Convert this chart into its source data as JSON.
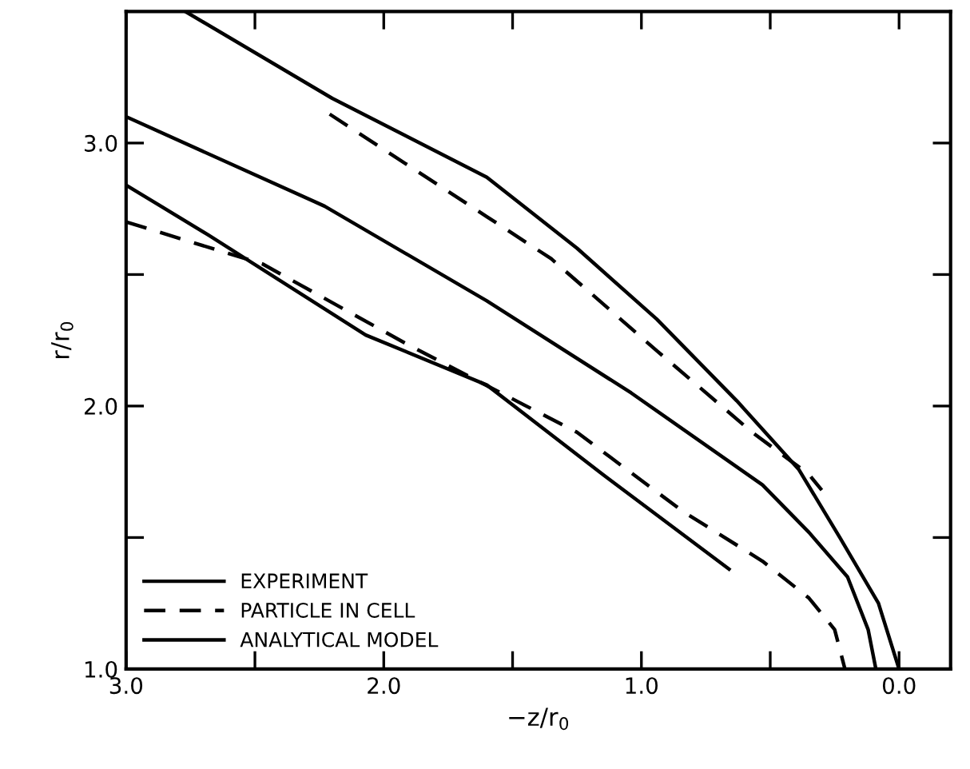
{
  "chart_data": {
    "type": "line",
    "xlabel": "−z/r$_{0}$",
    "ylabel": "r/r$_{0}$",
    "xlim": [
      3.0,
      -0.2
    ],
    "ylim": [
      1.0,
      3.5
    ],
    "xticks": [
      {
        "value": 3.0,
        "label": "3.0"
      },
      {
        "value": 2.5,
        "label": null
      },
      {
        "value": 2.0,
        "label": "2.0"
      },
      {
        "value": 1.5,
        "label": null
      },
      {
        "value": 1.0,
        "label": "1.0"
      },
      {
        "value": 0.5,
        "label": null
      },
      {
        "value": 0.0,
        "label": "0.0"
      }
    ],
    "yticks": [
      {
        "value": 1.0,
        "label": "1.0"
      },
      {
        "value": 1.5,
        "label": null
      },
      {
        "value": 2.0,
        "label": "2.0"
      },
      {
        "value": 2.5,
        "label": null
      },
      {
        "value": 3.0,
        "label": "3.0"
      }
    ],
    "grid": false,
    "legend": "bottom left",
    "marker": "none",
    "series": [
      {
        "name": "EXPERIMENT",
        "color": "#000000",
        "line_style": "solid",
        "x": [
          2.77,
          2.2,
          1.6,
          1.25,
          0.94,
          0.63,
          0.39,
          0.23,
          0.08,
          0.0
        ],
        "values": [
          3.5,
          3.17,
          2.87,
          2.6,
          2.33,
          2.02,
          1.76,
          1.5,
          1.25,
          1.0
        ]
      },
      {
        "name": "PARTICLE IN CELL",
        "color": "#000000",
        "line_style": "dashed",
        "x": [
          2.21,
          1.6,
          1.35,
          0.94,
          0.57,
          0.35,
          0.3
        ],
        "values": [
          3.11,
          2.72,
          2.56,
          2.21,
          1.9,
          1.74,
          1.68
        ]
      },
      {
        "name": "ANALYTICAL MODEL",
        "color": "#000000",
        "line_style": "solid",
        "x": [
          3.0,
          2.23,
          1.6,
          1.04,
          0.53,
          0.35,
          0.2,
          0.12,
          0.09
        ],
        "values": [
          3.1,
          2.76,
          2.4,
          2.05,
          1.7,
          1.52,
          1.35,
          1.15,
          1.0
        ]
      },
      {
        "color": "#000000",
        "line_style": "solid",
        "x": [
          3.0,
          2.68,
          2.07,
          1.6,
          1.15,
          0.66
        ],
        "values": [
          2.84,
          2.65,
          2.27,
          2.08,
          1.74,
          1.38
        ]
      },
      {
        "color": "#000000",
        "line_style": "dashed",
        "x": [
          3.0,
          2.47,
          1.9,
          1.25,
          0.84,
          0.53,
          0.35,
          0.25,
          0.21
        ],
        "values": [
          2.7,
          2.54,
          2.23,
          1.9,
          1.6,
          1.41,
          1.27,
          1.15,
          1.0
        ]
      }
    ]
  }
}
